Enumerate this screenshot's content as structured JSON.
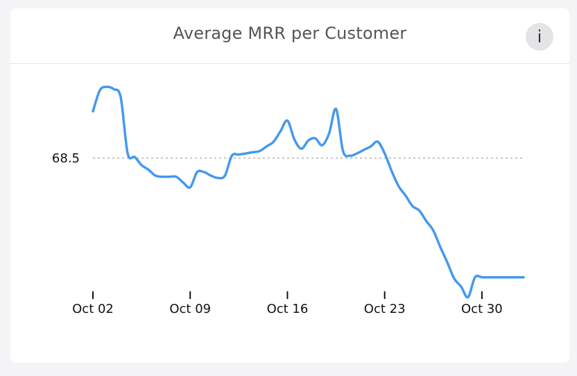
{
  "header": {
    "title": "Average MRR per Customer",
    "info_icon": "info-icon",
    "info_glyph": "i"
  },
  "colors": {
    "line": "#4499ee",
    "reference": "#b5b5b5",
    "axis": "#111111"
  },
  "chart_data": {
    "type": "line",
    "title": "Average MRR per Customer",
    "xlabel": "",
    "ylabel": "",
    "grid": false,
    "reference_line": {
      "value": 68.5,
      "label": "68.5"
    },
    "ylim": [
      62.5,
      72.0
    ],
    "x_ticks": [
      "Oct 02",
      "Oct 09",
      "Oct 16",
      "Oct 23",
      "Oct 30"
    ],
    "x_tick_positions": [
      2,
      9,
      16,
      23,
      30
    ],
    "xlim": [
      2,
      33
    ],
    "series": [
      {
        "x": [
          2,
          2.5,
          3,
          3.5,
          4,
          4.5,
          5,
          5.5,
          6,
          6.5,
          7,
          7.5,
          8,
          8.5,
          9,
          9.5,
          10,
          10.5,
          11,
          11.5,
          12,
          12.5,
          13,
          13.5,
          14,
          14.5,
          15,
          15.5,
          16,
          16.5,
          17,
          17.5,
          18,
          18.5,
          19,
          19.5,
          20,
          20.5,
          21,
          21.5,
          22,
          22.5,
          23,
          23.5,
          24,
          24.5,
          25,
          25.5,
          26,
          26.5,
          27,
          27.5,
          28,
          28.5,
          29,
          29.5,
          30,
          30.5,
          31,
          31.5,
          32,
          32.5,
          33
        ],
        "values": [
          70.5,
          71.4,
          71.55,
          71.45,
          71.1,
          68.7,
          68.55,
          68.2,
          68.0,
          67.75,
          67.7,
          67.7,
          67.7,
          67.45,
          67.25,
          67.9,
          67.9,
          67.75,
          67.65,
          67.75,
          68.6,
          68.65,
          68.7,
          68.75,
          68.8,
          69.0,
          69.2,
          69.65,
          70.1,
          69.3,
          68.9,
          69.25,
          69.35,
          69.05,
          69.55,
          70.6,
          68.8,
          68.6,
          68.7,
          68.85,
          69.0,
          69.2,
          68.7,
          67.95,
          67.3,
          66.9,
          66.45,
          66.25,
          65.8,
          65.4,
          64.7,
          64.05,
          63.35,
          63.0,
          62.55,
          63.4,
          63.4,
          63.4,
          63.4,
          63.4,
          63.4,
          63.4,
          63.4
        ]
      }
    ]
  }
}
